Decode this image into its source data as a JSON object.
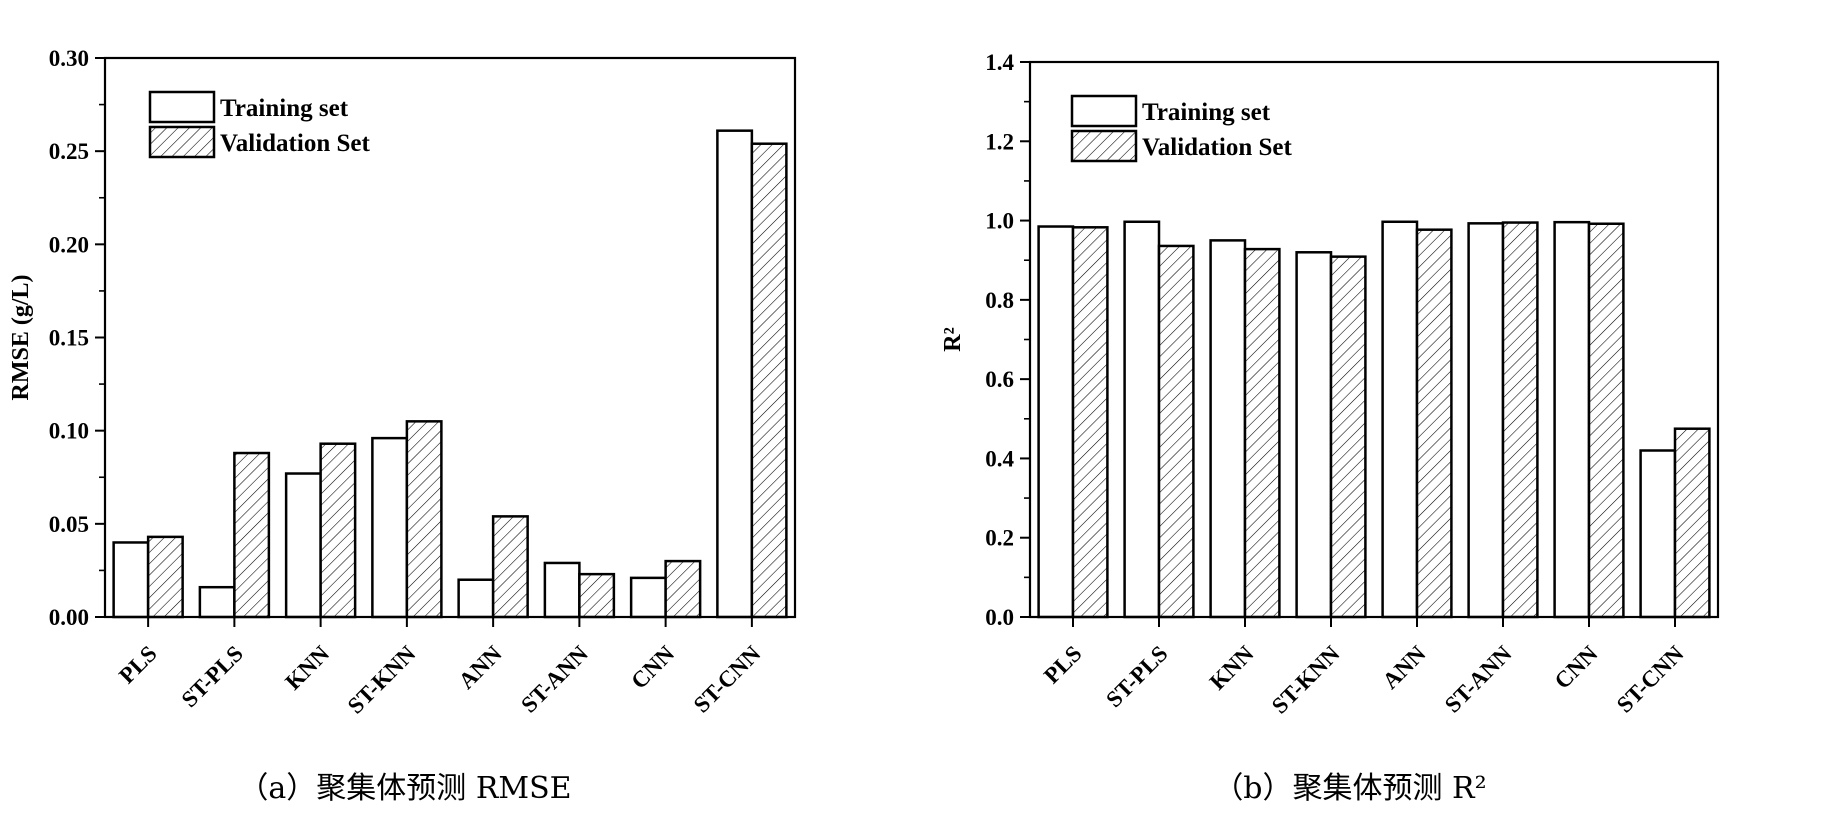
{
  "chart_data": [
    {
      "type": "bar",
      "title": "",
      "caption": "（a）聚集体预测 RMSE",
      "xlabel": "",
      "ylabel": "RMSE (g/L)",
      "ylim": [
        0,
        0.3
      ],
      "yticks": [
        "0.00",
        "0.05",
        "0.10",
        "0.15",
        "0.20",
        "0.25",
        "0.30"
      ],
      "categories": [
        "PLS",
        "ST-PLS",
        "KNN",
        "ST-KNN",
        "ANN",
        "ST-ANN",
        "CNN",
        "ST-CNN"
      ],
      "legend_position": "top-left",
      "grid": false,
      "series": [
        {
          "name": "Training set",
          "values": [
            0.04,
            0.016,
            0.077,
            0.096,
            0.02,
            0.029,
            0.021,
            0.261
          ]
        },
        {
          "name": "Validation Set",
          "values": [
            0.043,
            0.088,
            0.093,
            0.105,
            0.054,
            0.023,
            0.03,
            0.254
          ]
        }
      ]
    },
    {
      "type": "bar",
      "title": "",
      "caption": "（b）聚集体预测 R²",
      "xlabel": "",
      "ylabel": "R²",
      "ylim": [
        0,
        1.4
      ],
      "yticks": [
        "0.0",
        "0.2",
        "0.4",
        "0.6",
        "0.8",
        "1.0",
        "1.2",
        "1.4"
      ],
      "categories": [
        "PLS",
        "ST-PLS",
        "KNN",
        "ST-KNN",
        "ANN",
        "ST-ANN",
        "CNN",
        "ST-CNN"
      ],
      "legend_position": "top-left",
      "grid": false,
      "series": [
        {
          "name": "Training set",
          "values": [
            0.985,
            0.997,
            0.95,
            0.92,
            0.997,
            0.993,
            0.996,
            0.42
          ]
        },
        {
          "name": "Validation Set",
          "values": [
            0.983,
            0.936,
            0.928,
            0.909,
            0.977,
            0.995,
            0.992,
            0.475
          ]
        }
      ]
    }
  ]
}
